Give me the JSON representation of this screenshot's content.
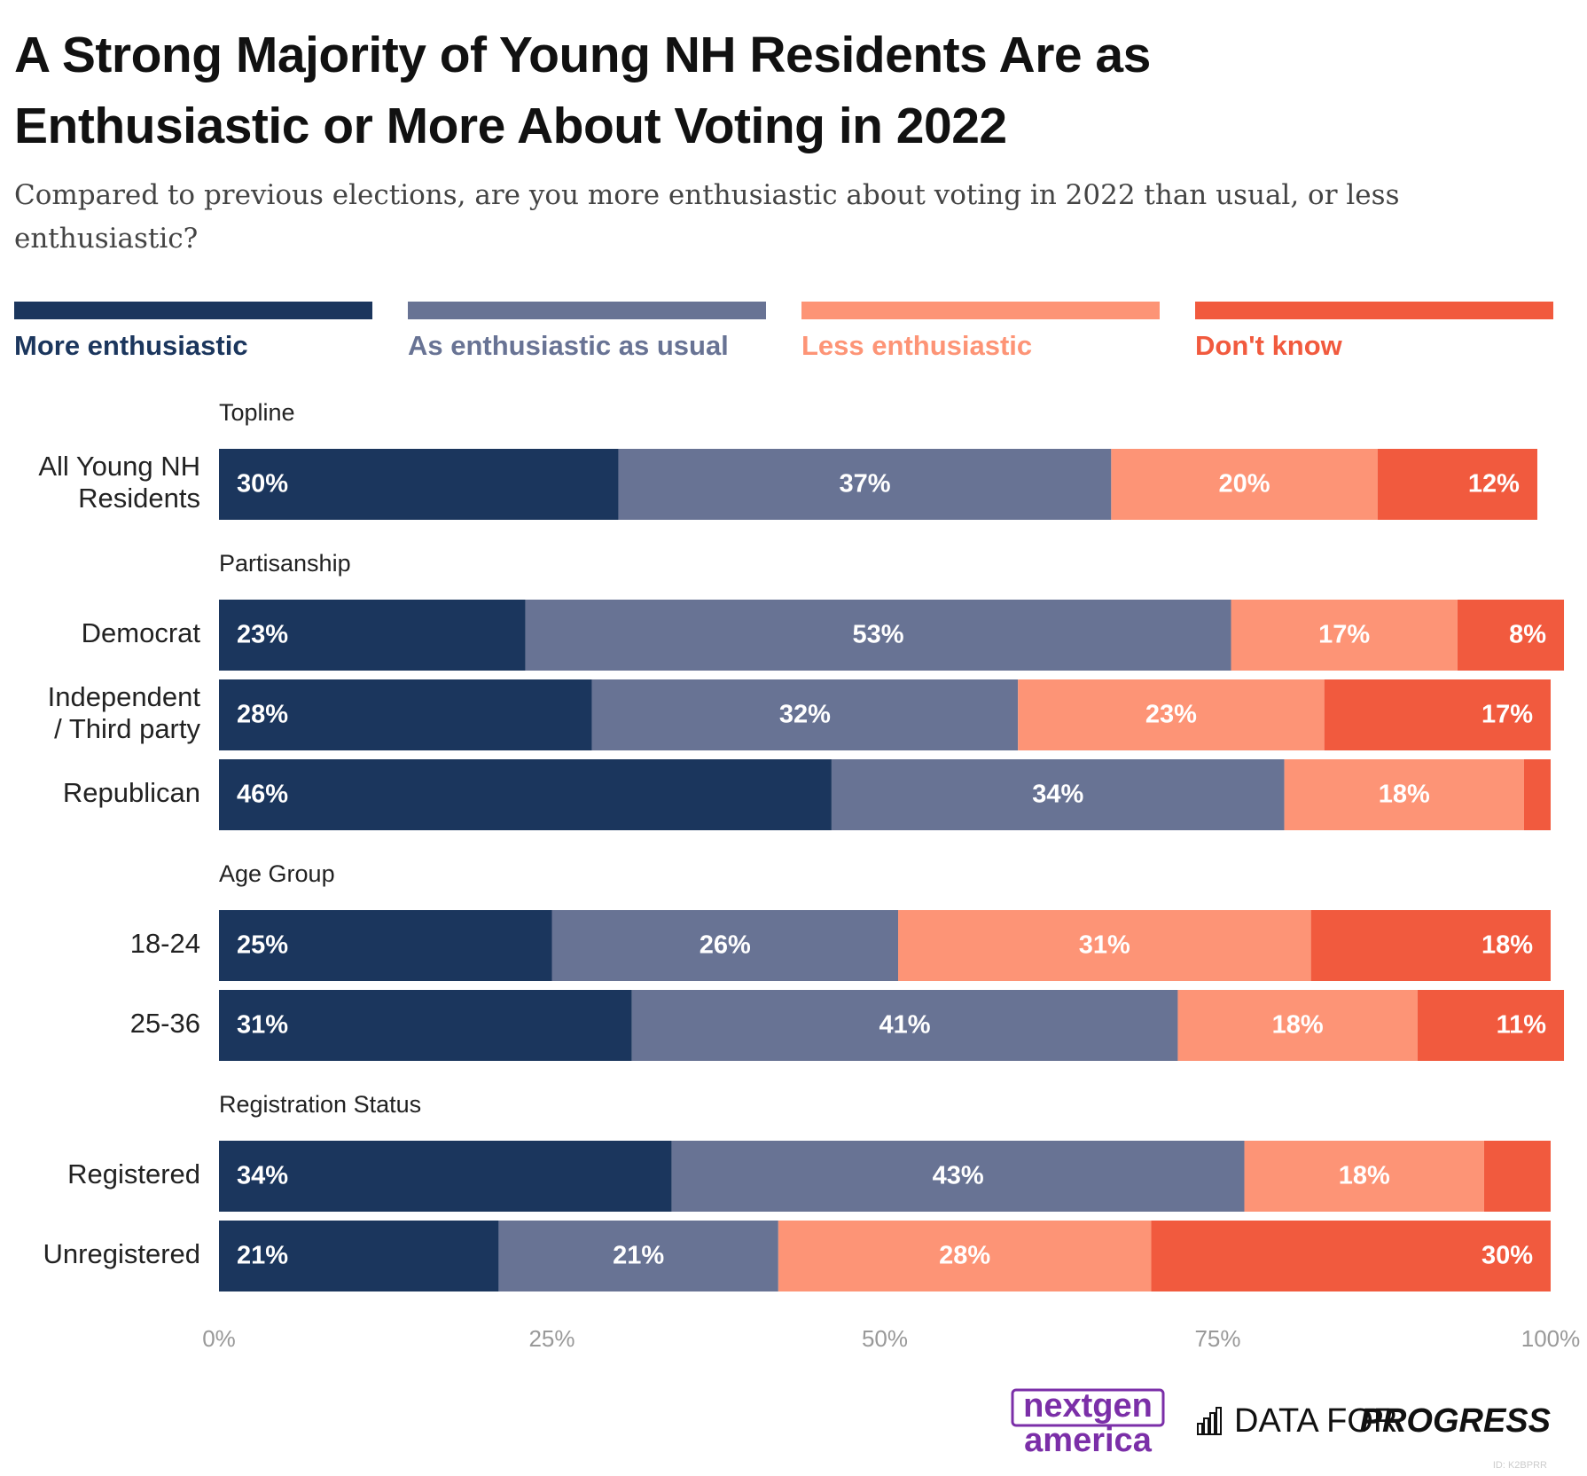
{
  "chart_data": {
    "type": "stacked-bar-horizontal",
    "title": "A Strong Majority of Young NH Residents Are as\nEnthusiastic or More About Voting in 2022",
    "subtitle": "Compared to previous elections, are you more enthusiastic about voting in 2022 than usual, or less enthusiastic?",
    "categories": [
      "All Young NH\nResidents",
      "Democrat",
      "Independent\n/ Third party",
      "Republican",
      "18-24",
      "25-36",
      "Registered",
      "Unregistered"
    ],
    "category_groups": [
      "Topline",
      "Partisanship",
      "Partisanship",
      "Partisanship",
      "Age Group",
      "Age Group",
      "Registration Status",
      "Registration Status"
    ],
    "series": [
      {
        "name": "More enthusiastic",
        "color": "#1b365d",
        "values": [
          30,
          23,
          28,
          46,
          25,
          31,
          34,
          21
        ],
        "value_labels": [
          "30%",
          "23%",
          "28%",
          "46%",
          "25%",
          "31%",
          "34%",
          "21%"
        ]
      },
      {
        "name": "As enthusiastic as usual",
        "color": "#687394",
        "values": [
          37,
          53,
          32,
          34,
          26,
          41,
          43,
          21
        ],
        "value_labels": [
          "37%",
          "53%",
          "32%",
          "34%",
          "26%",
          "41%",
          "43%",
          "21%"
        ]
      },
      {
        "name": "Less enthusiastic",
        "color": "#fd9476",
        "values": [
          20,
          17,
          23,
          18,
          31,
          18,
          18,
          28
        ],
        "value_labels": [
          "20%",
          "17%",
          "23%",
          "18%",
          "31%",
          "18%",
          "18%",
          "28%"
        ]
      },
      {
        "name": "Don't know",
        "color": "#f15a3e",
        "values": [
          12,
          8,
          17,
          2,
          18,
          11,
          5,
          30
        ],
        "value_labels": [
          "12%",
          "8%",
          "17%",
          null,
          "18%",
          "11%",
          null,
          "30%"
        ]
      }
    ],
    "xlim": [
      0,
      100
    ],
    "xticks": [
      {
        "value": 0,
        "label": "0%"
      },
      {
        "value": 25,
        "label": "25%"
      },
      {
        "value": 50,
        "label": "50%"
      },
      {
        "value": 75,
        "label": "75%"
      },
      {
        "value": 100,
        "label": "100%"
      }
    ],
    "grid": false
  },
  "logo": [
    "nextgen",
    "america"
  ],
  "brand": [
    "DATA FOR",
    "PROGRESS"
  ],
  "chart_id": "ID: K2BPRR"
}
